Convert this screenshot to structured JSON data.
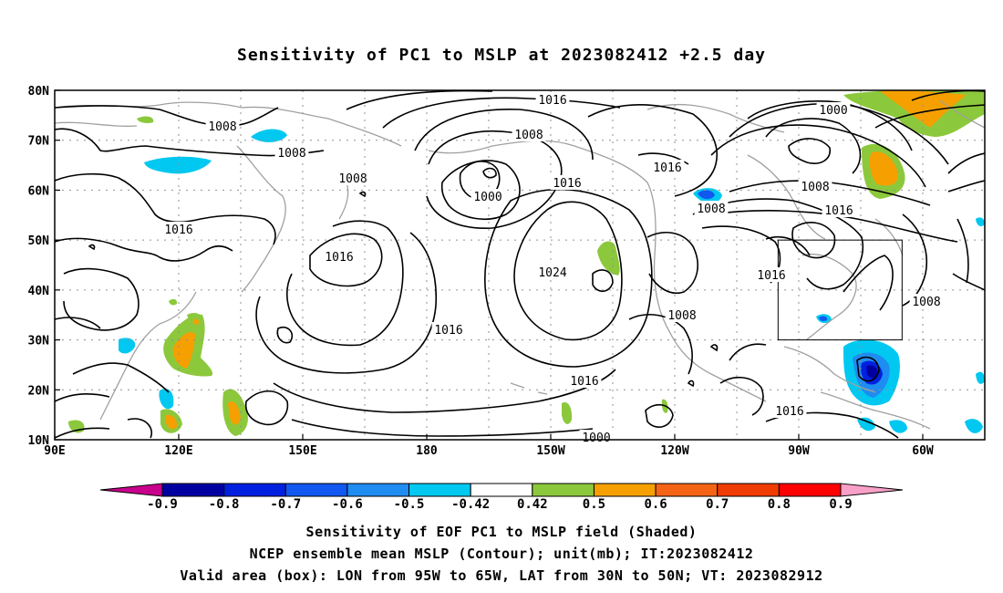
{
  "title": "Sensitivity of PC1 to MSLP at 2023082412 +2.5 day",
  "map": {
    "lon_labels": [
      "90E",
      "120E",
      "150E",
      "180",
      "150W",
      "120W",
      "90W",
      "60W"
    ],
    "lat_labels": [
      "10N",
      "20N",
      "30N",
      "40N",
      "50N",
      "60N",
      "70N",
      "80N"
    ],
    "lon_range": [
      90,
      315
    ],
    "lat_range": [
      10,
      80
    ],
    "grid": "dotted",
    "box": {
      "lon": [
        265,
        295
      ],
      "lat": [
        30,
        50
      ]
    },
    "contour_labels": [
      "1016",
      "1008",
      "1008",
      "1008",
      "1016",
      "1000",
      "1008",
      "1016",
      "1016",
      "1024",
      "1016",
      "1016",
      "1000",
      "1008",
      "1016",
      "1016",
      "1016",
      "1008",
      "1008",
      "1008",
      "1016",
      "1000"
    ]
  },
  "colorbar": {
    "ticks": [
      "-0.9",
      "-0.8",
      "-0.7",
      "-0.6",
      "-0.5",
      "-0.42",
      "0.42",
      "0.5",
      "0.6",
      "0.7",
      "0.8",
      "0.9"
    ],
    "colors": [
      "#c8008c",
      "#0000a0",
      "#0020e0",
      "#1058f0",
      "#1e8cf0",
      "#00c8f0",
      "#ffffff",
      "#8cc83c",
      "#f5a000",
      "#f56414",
      "#f03c00",
      "#ff0000",
      "#f8a0c8"
    ]
  },
  "captions": [
    "Sensitivity of EOF PC1 to MSLP field (Shaded)",
    "NCEP ensemble mean MSLP (Contour); unit(mb); IT:2023082412",
    "Valid area (box): LON from 95W to 65W, LAT from 30N to 50N; VT: 2023082912"
  ]
}
